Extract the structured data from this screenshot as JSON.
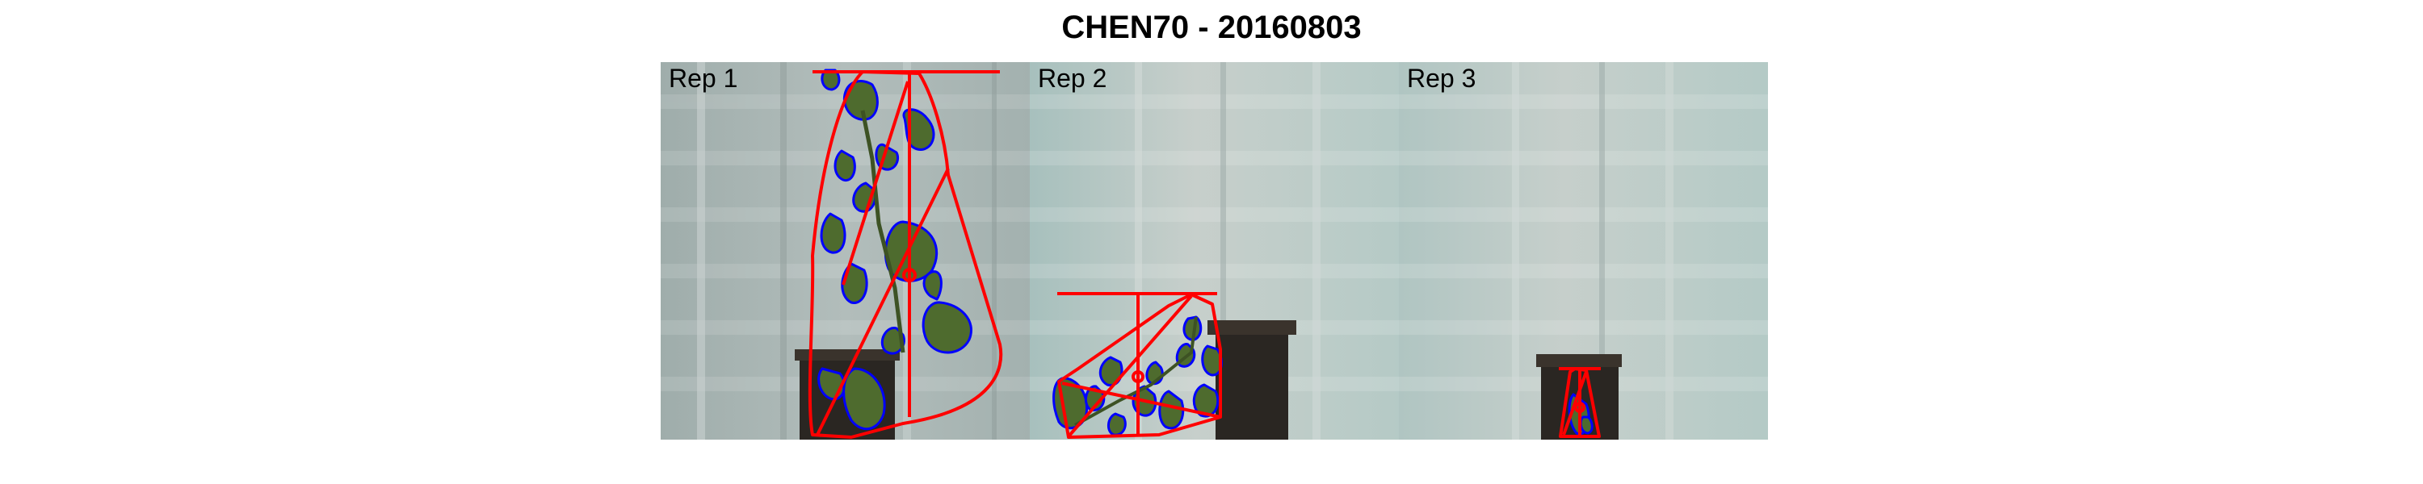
{
  "title": "CHEN70 - 20160803",
  "panels": [
    {
      "label": "Rep 1"
    },
    {
      "label": "Rep 2"
    },
    {
      "label": "Rep 3"
    }
  ],
  "colors": {
    "hull": "#ff0000",
    "contour": "#0000ff",
    "leaf": "#4e6b2e",
    "pot": "#2a2622",
    "background_1": "#a9b6b4",
    "background_2": "#b8cac7",
    "background_3": "#bccfcd"
  }
}
